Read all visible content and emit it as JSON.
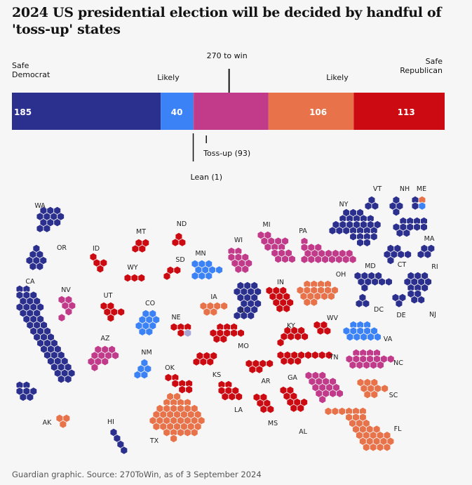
{
  "title": "2024 US presidential election will be decided by handful of 'toss-up' states",
  "source": "Guardian graphic. Source: 270ToWin, as of 3 September 2024",
  "colors": {
    "safe_dem": "#2b2f8e",
    "likely_dem": "#3b82f6",
    "lean_dem": "#6a72c9",
    "toss_up": "#c23b8a",
    "lean_rep": "#f4a06a",
    "likely_rep": "#e8734a",
    "safe_rep": "#cc0a11",
    "bg": "#f6f6f6"
  },
  "chart_data": {
    "type": "bar",
    "stacked": true,
    "total": 538,
    "threshold": 270,
    "threshold_label": "270 to win",
    "segments": [
      {
        "key": "safe_dem",
        "label": "Safe Democrat",
        "value": 185,
        "value_label": "185"
      },
      {
        "key": "likely_dem",
        "label": "Likely",
        "value": 40,
        "value_label": "40"
      },
      {
        "key": "lean_dem",
        "label": "Lean (1)",
        "value": 1,
        "value_label": ""
      },
      {
        "key": "toss_up",
        "label": "Toss-up (93)",
        "value": 93,
        "value_label": ""
      },
      {
        "key": "likely_rep",
        "label": "Likely",
        "value": 106,
        "value_label": "106"
      },
      {
        "key": "safe_rep",
        "label": "Safe Republican",
        "value": 113,
        "value_label": "113"
      }
    ],
    "states": [
      {
        "abbr": "WA",
        "category": "safe_dem",
        "ev": 12
      },
      {
        "abbr": "OR",
        "category": "safe_dem",
        "ev": 8
      },
      {
        "abbr": "CA",
        "category": "safe_dem",
        "ev": 54
      },
      {
        "abbr": "NV",
        "category": "toss_up",
        "ev": 6
      },
      {
        "abbr": "ID",
        "category": "safe_rep",
        "ev": 4
      },
      {
        "abbr": "MT",
        "category": "safe_rep",
        "ev": 4
      },
      {
        "abbr": "WY",
        "category": "safe_rep",
        "ev": 3
      },
      {
        "abbr": "UT",
        "category": "safe_rep",
        "ev": 6
      },
      {
        "abbr": "AZ",
        "category": "toss_up",
        "ev": 11
      },
      {
        "abbr": "CO",
        "category": "likely_dem",
        "ev": 10
      },
      {
        "abbr": "NM",
        "category": "likely_dem",
        "ev": 5
      },
      {
        "abbr": "ND",
        "category": "safe_rep",
        "ev": 3
      },
      {
        "abbr": "SD",
        "category": "safe_rep",
        "ev": 3
      },
      {
        "abbr": "NE",
        "category": "safe_rep",
        "ev": 5
      },
      {
        "abbr": "KS",
        "category": "safe_rep",
        "ev": 6
      },
      {
        "abbr": "OK",
        "category": "safe_rep",
        "ev": 7
      },
      {
        "abbr": "TX",
        "category": "likely_rep",
        "ev": 40
      },
      {
        "abbr": "MN",
        "category": "likely_dem",
        "ev": 10
      },
      {
        "abbr": "IA",
        "category": "likely_rep",
        "ev": 6
      },
      {
        "abbr": "MO",
        "category": "safe_rep",
        "ev": 10
      },
      {
        "abbr": "AR",
        "category": "safe_rep",
        "ev": 6
      },
      {
        "abbr": "LA",
        "category": "safe_rep",
        "ev": 8
      },
      {
        "abbr": "WI",
        "category": "toss_up",
        "ev": 10
      },
      {
        "abbr": "IL",
        "category": "safe_dem",
        "ev": 19
      },
      {
        "abbr": "MI",
        "category": "toss_up",
        "ev": 15
      },
      {
        "abbr": "IN",
        "category": "safe_rep",
        "ev": 11
      },
      {
        "abbr": "OH",
        "category": "likely_rep",
        "ev": 17
      },
      {
        "abbr": "KY",
        "category": "safe_rep",
        "ev": 8
      },
      {
        "abbr": "TN",
        "category": "safe_rep",
        "ev": 11
      },
      {
        "abbr": "MS",
        "category": "safe_rep",
        "ev": 6
      },
      {
        "abbr": "AL",
        "category": "safe_rep",
        "ev": 9
      },
      {
        "abbr": "GA",
        "category": "toss_up",
        "ev": 16
      },
      {
        "abbr": "FL",
        "category": "likely_rep",
        "ev": 30
      },
      {
        "abbr": "SC",
        "category": "likely_rep",
        "ev": 9
      },
      {
        "abbr": "NC",
        "category": "toss_up",
        "ev": 16
      },
      {
        "abbr": "VA",
        "category": "likely_dem",
        "ev": 13
      },
      {
        "abbr": "WV",
        "category": "safe_rep",
        "ev": 4
      },
      {
        "abbr": "PA",
        "category": "toss_up",
        "ev": 19
      },
      {
        "abbr": "NY",
        "category": "safe_dem",
        "ev": 28
      },
      {
        "abbr": "VT",
        "category": "safe_dem",
        "ev": 3
      },
      {
        "abbr": "NH",
        "category": "safe_dem",
        "ev": 4
      },
      {
        "abbr": "ME",
        "category": "safe_dem",
        "ev": 4
      },
      {
        "abbr": "MA",
        "category": "safe_dem",
        "ev": 11
      },
      {
        "abbr": "RI",
        "category": "safe_dem",
        "ev": 4
      },
      {
        "abbr": "CT",
        "category": "safe_dem",
        "ev": 7
      },
      {
        "abbr": "NJ",
        "category": "safe_dem",
        "ev": 14
      },
      {
        "abbr": "DE",
        "category": "safe_dem",
        "ev": 3
      },
      {
        "abbr": "MD",
        "category": "safe_dem",
        "ev": 10
      },
      {
        "abbr": "DC",
        "category": "safe_dem",
        "ev": 3
      },
      {
        "abbr": "AK",
        "category": "likely_rep",
        "ev": 3
      },
      {
        "abbr": "HI",
        "category": "safe_dem",
        "ev": 4
      }
    ]
  }
}
